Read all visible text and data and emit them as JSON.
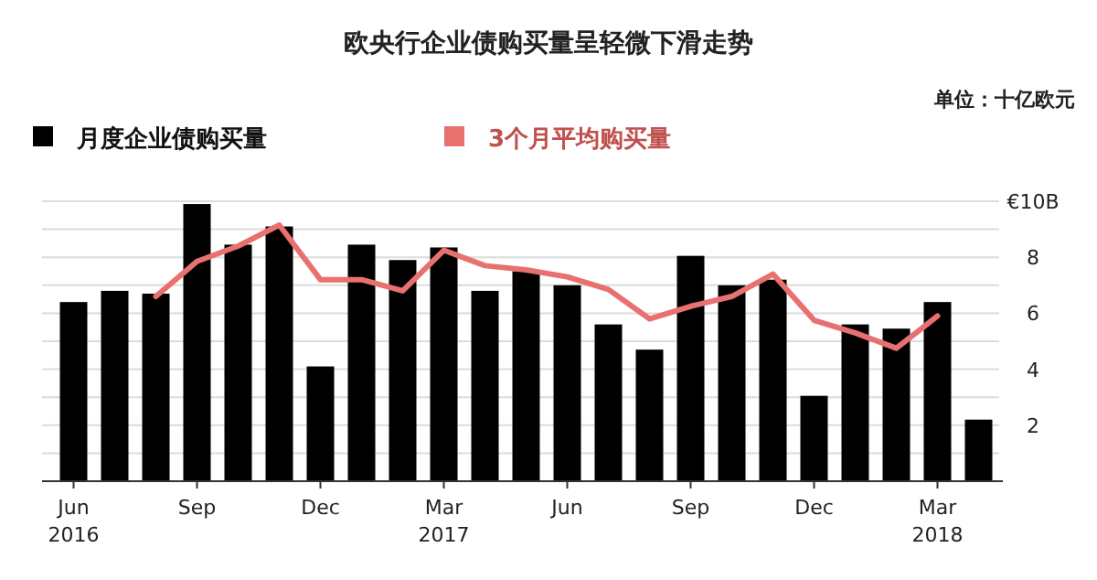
{
  "chart_data": {
    "type": "bar",
    "title": "欧央行企业债购买量呈轻微下滑走势",
    "annotations": [
      "单位：十亿欧元"
    ],
    "categories": [
      "Jun 2016",
      null,
      null,
      "Sep",
      null,
      null,
      "Dec",
      null,
      null,
      "Mar 2017",
      null,
      null,
      "Jun",
      null,
      null,
      "Sep",
      null,
      null,
      "Dec",
      null,
      null,
      "Mar 2018",
      null
    ],
    "series": [
      {
        "name": "月度企业债购买量",
        "color": "#000000",
        "values": [
          6.4,
          6.8,
          6.7,
          9.9,
          8.45,
          9.1,
          4.1,
          8.45,
          7.9,
          8.35,
          6.8,
          7.5,
          7.0,
          5.6,
          4.7,
          8.05,
          7.0,
          7.2,
          3.05,
          5.6,
          5.45,
          6.4,
          2.2
        ]
      },
      {
        "name": "3个月平均购买量",
        "type": "line",
        "color": "#e8706f",
        "values": [
          null,
          null,
          6.6,
          7.85,
          8.4,
          9.15,
          7.2,
          7.2,
          6.8,
          8.25,
          7.7,
          7.55,
          7.3,
          6.85,
          5.8,
          6.25,
          6.6,
          7.4,
          5.75,
          5.3,
          4.75,
          5.9,
          null
        ]
      }
    ],
    "ylim": [
      0,
      10
    ],
    "yticks": [
      {
        "value": 1,
        "label": null
      },
      2,
      {
        "value": 3,
        "label": null
      },
      4,
      {
        "value": 5,
        "label": null
      },
      6,
      {
        "value": 7,
        "label": null
      },
      8,
      {
        "value": 9,
        "label": null
      },
      {
        "value": 10,
        "label": "€10B"
      }
    ],
    "grid": "y",
    "legend": "top left"
  }
}
